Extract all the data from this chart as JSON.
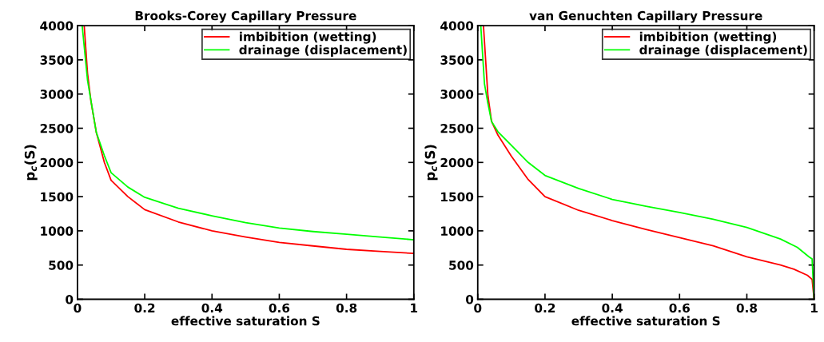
{
  "chart_data": [
    {
      "type": "line",
      "title": "Brooks-Corey Capillary Pressure",
      "xlabel": "effective saturation S",
      "ylabel": "p$_{c}$(S)",
      "xlim": [
        0,
        1
      ],
      "ylim": [
        0,
        4000
      ],
      "xticks": [
        0,
        0.2,
        0.4,
        0.6,
        0.8,
        1
      ],
      "yticks": [
        0,
        500,
        1000,
        1500,
        2000,
        2500,
        3000,
        3500,
        4000
      ],
      "legend": "top right",
      "grid": false,
      "marker": "none",
      "line_style": "solid",
      "series": [
        {
          "name": "imbibition (wetting)",
          "color": "#ff0000",
          "x": [
            0.02,
            0.03,
            0.04,
            0.056,
            0.08,
            0.1,
            0.15,
            0.2,
            0.3,
            0.4,
            0.5,
            0.6,
            0.7,
            0.8,
            0.9,
            1
          ],
          "values": [
            4000,
            3300,
            2900,
            2440,
            2000,
            1740,
            1500,
            1310,
            1130,
            1000,
            910,
            830,
            780,
            730,
            700,
            670
          ]
        },
        {
          "name": "drainage (displacement)",
          "color": "#00ff00",
          "x": [
            0.014,
            0.03,
            0.056,
            0.08,
            0.1,
            0.15,
            0.2,
            0.3,
            0.4,
            0.5,
            0.6,
            0.7,
            0.8,
            0.9,
            1
          ],
          "values": [
            4000,
            3200,
            2440,
            2100,
            1850,
            1640,
            1490,
            1330,
            1220,
            1120,
            1040,
            990,
            950,
            910,
            870
          ]
        }
      ]
    },
    {
      "type": "line",
      "title": "van Genuchten Capillary Pressure",
      "xlabel": "effective saturation S",
      "ylabel": "p$_{c}$(S)",
      "xlim": [
        0,
        1
      ],
      "ylim": [
        0,
        4000
      ],
      "xticks": [
        0,
        0.2,
        0.4,
        0.6,
        0.8,
        1
      ],
      "yticks": [
        0,
        500,
        1000,
        1500,
        2000,
        2500,
        3000,
        3500,
        4000
      ],
      "legend": "top right",
      "grid": false,
      "marker": "none",
      "line_style": "solid",
      "series": [
        {
          "name": "imbibition (wetting)",
          "color": "#ff0000",
          "x": [
            0.017,
            0.03,
            0.041,
            0.06,
            0.1,
            0.15,
            0.2,
            0.3,
            0.4,
            0.5,
            0.6,
            0.7,
            0.8,
            0.9,
            0.94,
            0.98,
            0.994,
            1
          ],
          "values": [
            4000,
            2990,
            2600,
            2400,
            2090,
            1750,
            1500,
            1300,
            1150,
            1020,
            900,
            780,
            620,
            500,
            440,
            350,
            290,
            0
          ]
        },
        {
          "name": "drainage (displacement)",
          "color": "#00ff00",
          "x": [
            0.009,
            0.02,
            0.03,
            0.041,
            0.06,
            0.1,
            0.15,
            0.2,
            0.3,
            0.4,
            0.5,
            0.6,
            0.7,
            0.8,
            0.9,
            0.95,
            0.985,
            0.994,
            1
          ],
          "values": [
            4000,
            3150,
            2870,
            2600,
            2450,
            2250,
            2000,
            1810,
            1620,
            1460,
            1360,
            1270,
            1170,
            1050,
            880,
            760,
            620,
            590,
            0
          ]
        }
      ]
    }
  ]
}
